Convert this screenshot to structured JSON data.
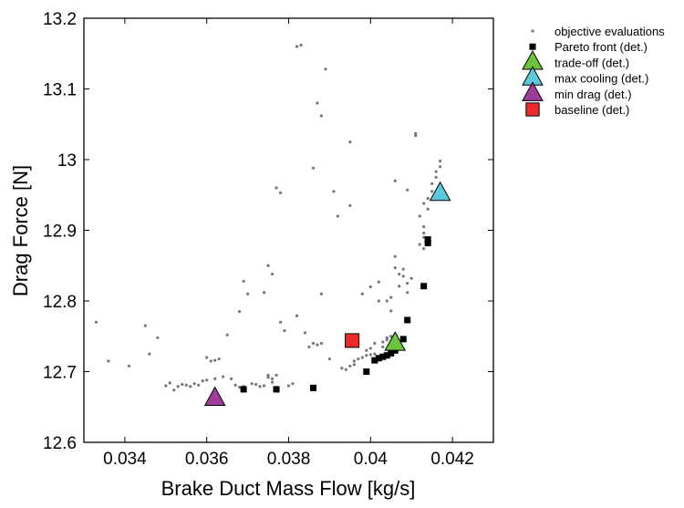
{
  "chart_data": {
    "type": "scatter",
    "xlabel": "Brake Duct Mass Flow [kg/s]",
    "ylabel": "Drag Force [N]",
    "xlim": [
      0.033,
      0.043
    ],
    "ylim": [
      12.6,
      13.2
    ],
    "xticks": [
      0.034,
      0.036,
      0.038,
      0.04,
      0.042
    ],
    "xtick_labels": [
      "0.034",
      "0.036",
      "0.038",
      "0.04",
      "0.042"
    ],
    "yticks": [
      12.6,
      12.7,
      12.8,
      12.9,
      13,
      13.1,
      13.2
    ],
    "ytick_labels": [
      "12.6",
      "12.7",
      "12.8",
      "12.9",
      "13",
      "13.1",
      "13.2"
    ],
    "grid": false,
    "legend_position": "outside-right",
    "series": [
      {
        "name": "objective evaluations",
        "marker": "dot",
        "color": "#777777",
        "points": [
          [
            0.0333,
            12.77
          ],
          [
            0.0336,
            12.715
          ],
          [
            0.0341,
            12.708
          ],
          [
            0.0345,
            12.765
          ],
          [
            0.0346,
            12.725
          ],
          [
            0.0348,
            12.748
          ],
          [
            0.035,
            12.68
          ],
          [
            0.0351,
            12.684
          ],
          [
            0.0352,
            12.674
          ],
          [
            0.0353,
            12.679
          ],
          [
            0.0354,
            12.682
          ],
          [
            0.0355,
            12.681
          ],
          [
            0.0356,
            12.679
          ],
          [
            0.0357,
            12.683
          ],
          [
            0.0358,
            12.681
          ],
          [
            0.0359,
            12.687
          ],
          [
            0.036,
            12.688
          ],
          [
            0.036,
            12.72
          ],
          [
            0.0361,
            12.715
          ],
          [
            0.0362,
            12.69
          ],
          [
            0.0362,
            12.716
          ],
          [
            0.0363,
            12.718
          ],
          [
            0.0364,
            12.693
          ],
          [
            0.0365,
            12.752
          ],
          [
            0.0366,
            12.69
          ],
          [
            0.0367,
            12.681
          ],
          [
            0.0368,
            12.678
          ],
          [
            0.0368,
            12.785
          ],
          [
            0.0369,
            12.679
          ],
          [
            0.0369,
            12.828
          ],
          [
            0.037,
            12.81
          ],
          [
            0.0371,
            12.683
          ],
          [
            0.0372,
            12.682
          ],
          [
            0.0373,
            12.679
          ],
          [
            0.0374,
            12.812
          ],
          [
            0.0374,
            12.68
          ],
          [
            0.0375,
            12.692
          ],
          [
            0.0375,
            12.695
          ],
          [
            0.0375,
            12.85
          ],
          [
            0.0376,
            12.838
          ],
          [
            0.0376,
            12.685
          ],
          [
            0.0376,
            12.69
          ],
          [
            0.0377,
            12.695
          ],
          [
            0.0377,
            12.96
          ],
          [
            0.0378,
            12.953
          ],
          [
            0.0378,
            12.77
          ],
          [
            0.0379,
            12.758
          ],
          [
            0.038,
            12.68
          ],
          [
            0.0381,
            12.683
          ],
          [
            0.0382,
            12.779
          ],
          [
            0.0382,
            13.16
          ],
          [
            0.0383,
            13.162
          ],
          [
            0.0384,
            12.755
          ],
          [
            0.0385,
            12.735
          ],
          [
            0.0386,
            12.74
          ],
          [
            0.0386,
            12.988
          ],
          [
            0.0387,
            12.738
          ],
          [
            0.0387,
            13.08
          ],
          [
            0.0388,
            13.062
          ],
          [
            0.0388,
            12.81
          ],
          [
            0.0388,
            12.74
          ],
          [
            0.0389,
            13.128
          ],
          [
            0.039,
            12.718
          ],
          [
            0.0391,
            12.955
          ],
          [
            0.0392,
            12.92
          ],
          [
            0.0393,
            12.705
          ],
          [
            0.0394,
            12.703
          ],
          [
            0.0395,
            12.708
          ],
          [
            0.0395,
            12.935
          ],
          [
            0.0395,
            13.025
          ],
          [
            0.0396,
            12.71
          ],
          [
            0.0396,
            12.715
          ],
          [
            0.0397,
            12.718
          ],
          [
            0.0397,
            12.74
          ],
          [
            0.0398,
            12.72
          ],
          [
            0.0398,
            12.81
          ],
          [
            0.0399,
            12.723
          ],
          [
            0.0399,
            12.73
          ],
          [
            0.04,
            12.724
          ],
          [
            0.04,
            12.733
          ],
          [
            0.04,
            12.82
          ],
          [
            0.0401,
            12.725
          ],
          [
            0.0401,
            12.74
          ],
          [
            0.0402,
            12.8
          ],
          [
            0.0402,
            12.827
          ],
          [
            0.0403,
            12.735
          ],
          [
            0.0403,
            12.742
          ],
          [
            0.0404,
            12.745
          ],
          [
            0.0404,
            12.748
          ],
          [
            0.0404,
            12.8
          ],
          [
            0.0405,
            12.75
          ],
          [
            0.0405,
            12.786
          ],
          [
            0.0405,
            12.805
          ],
          [
            0.0406,
            12.97
          ],
          [
            0.0406,
            12.863
          ],
          [
            0.0406,
            12.847
          ],
          [
            0.0407,
            12.838
          ],
          [
            0.0407,
            12.821
          ],
          [
            0.0408,
            12.835
          ],
          [
            0.0408,
            12.845
          ],
          [
            0.0409,
            12.825
          ],
          [
            0.0409,
            12.812
          ],
          [
            0.0409,
            12.957
          ],
          [
            0.041,
            12.832
          ],
          [
            0.0411,
            13.037
          ],
          [
            0.0411,
            13.034
          ],
          [
            0.0412,
            12.88
          ],
          [
            0.0412,
            12.92
          ],
          [
            0.0413,
            12.905
          ],
          [
            0.0413,
            12.89
          ],
          [
            0.0413,
            12.874
          ],
          [
            0.0413,
            12.938
          ],
          [
            0.0413,
            12.896
          ],
          [
            0.0414,
            12.93
          ],
          [
            0.0414,
            12.945
          ],
          [
            0.0415,
            12.955
          ],
          [
            0.0415,
            12.966
          ],
          [
            0.0416,
            12.975
          ],
          [
            0.0416,
            12.983
          ],
          [
            0.0417,
            12.99
          ],
          [
            0.0417,
            12.998
          ]
        ]
      },
      {
        "name": "Pareto front (det.)",
        "marker": "square",
        "color": "#000000",
        "points": [
          [
            0.0369,
            12.675
          ],
          [
            0.0377,
            12.675
          ],
          [
            0.0386,
            12.677
          ],
          [
            0.0399,
            12.7
          ],
          [
            0.0401,
            12.716
          ],
          [
            0.0402,
            12.719
          ],
          [
            0.0403,
            12.721
          ],
          [
            0.0404,
            12.723
          ],
          [
            0.0405,
            12.726
          ],
          [
            0.0406,
            12.73
          ],
          [
            0.0408,
            12.746
          ],
          [
            0.0409,
            12.773
          ],
          [
            0.0413,
            12.821
          ],
          [
            0.0414,
            12.882
          ],
          [
            0.0414,
            12.887
          ]
        ]
      },
      {
        "name": "trade-off (det.)",
        "marker": "triangle",
        "color": "#6cc43a",
        "points": [
          [
            0.0406,
            12.74
          ]
        ]
      },
      {
        "name": "max cooling (det.)",
        "marker": "triangle",
        "color": "#5bc8dc",
        "points": [
          [
            0.0417,
            12.952
          ]
        ]
      },
      {
        "name": "min drag (det.)",
        "marker": "triangle",
        "color": "#a03d9c",
        "points": [
          [
            0.0362,
            12.662
          ]
        ]
      },
      {
        "name": "baseline (det.)",
        "marker": "big-square",
        "color": "#ec2a2a",
        "points": [
          [
            0.03955,
            12.744
          ]
        ]
      }
    ]
  }
}
